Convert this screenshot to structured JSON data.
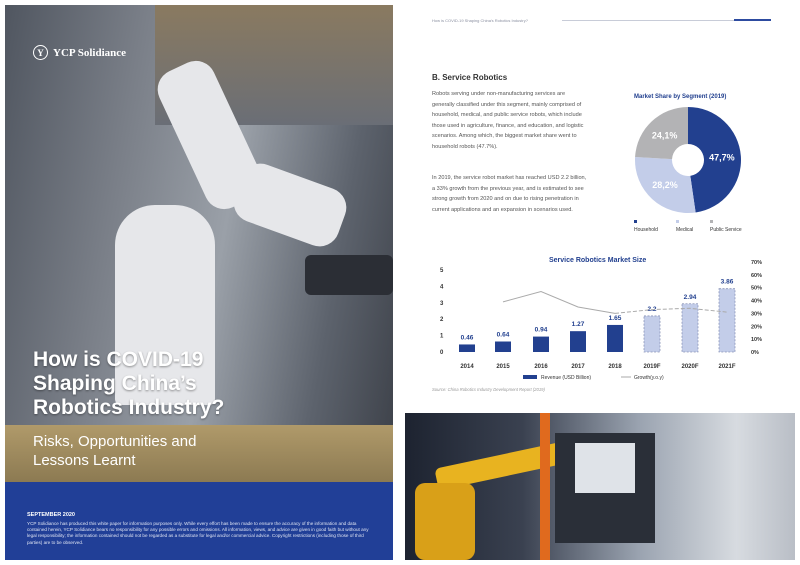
{
  "cover": {
    "logo_text": "YCP Solidiance",
    "title_lines": [
      "How is COVID-19",
      "Shaping China’s",
      "Robotics Industry?"
    ],
    "subtitle_lines": [
      "Risks, Opportunities and",
      "Lessons Learnt"
    ],
    "date": "SEPTEMBER 2020",
    "disclaimer": "YCP Solidiance has produced this white paper for information purposes only. While every effort has been made to ensure the accuracy of the information and data contained herein, YCP Solidiance bears no responsibility for any possible errors and omissions. All information, views, and advice are given in good faith but without any legal responsibility; the information contained should not be regarded as a substitute for legal and/or commercial advice. Copyright restrictions (including those of third parties) are to be observed.",
    "brand_color": "#213f97"
  },
  "page": {
    "header": "How is COVID-19 Shaping China's Robotics Industry?",
    "section_title": "B. Service Robotics",
    "paragraph1": "Robots serving under non-manufacturing services are generally classified under this segment, mainly comprised of household, medical, and public service robots, which include those used in agriculture, finance, and education, and logistic scenarios. Among which, the biggest market share went to household robots (47.7%).",
    "paragraph2": "In 2019, the service robot market has reached USD 2.2 billion, a 33% growth from the previous year, and is estimated to see strong growth from 2020 and on due to rising penetration in current applications and an expansion in scenarios used.",
    "source": "Source: China Robotics Industry Development Report (2019)"
  },
  "chart_data": [
    {
      "type": "pie",
      "title": "Market Share by Segment (2019)",
      "donut": true,
      "categories": [
        "Household",
        "Medical",
        "Public Service"
      ],
      "values": [
        47.7,
        28.2,
        24.1
      ],
      "labels": [
        "47,7%",
        "28,2%",
        "24,1%"
      ],
      "colors": [
        "#22408f",
        "#c3cde9",
        "#b3b3b5"
      ],
      "legend": "bottom"
    },
    {
      "type": "bar",
      "title": "Service Robotics Market Size",
      "categories": [
        "2014",
        "2015",
        "2016",
        "2017",
        "2018",
        "2019F",
        "2020F",
        "2021F"
      ],
      "series": [
        {
          "name": "Revenue (USD Billion)",
          "type": "bar",
          "values": [
            0.46,
            0.64,
            0.94,
            1.27,
            1.65,
            2.2,
            2.94,
            3.86
          ],
          "labels": [
            "0.46",
            "0.64",
            "0.94",
            "1.27",
            "1.65",
            "2.2",
            "2.94",
            "3.86"
          ],
          "forecast_from": "2019F",
          "color": "#22408f",
          "forecast_color": "#c3cde9"
        },
        {
          "name": "Growth(y.o.y)",
          "type": "line",
          "axis": "right",
          "values": [
            null,
            39,
            47,
            35,
            30,
            33,
            34,
            31
          ],
          "color": "#aaaaaa"
        }
      ],
      "yticks_left": [
        "0",
        "1",
        "2",
        "3",
        "4",
        "5"
      ],
      "yticks_right": [
        "0%",
        "10%",
        "20%",
        "30%",
        "40%",
        "50%",
        "60%",
        "70%"
      ],
      "ylim_left": [
        0,
        5
      ],
      "ylim_right": [
        0,
        70
      ],
      "grid": false,
      "legend": "bottom"
    }
  ]
}
